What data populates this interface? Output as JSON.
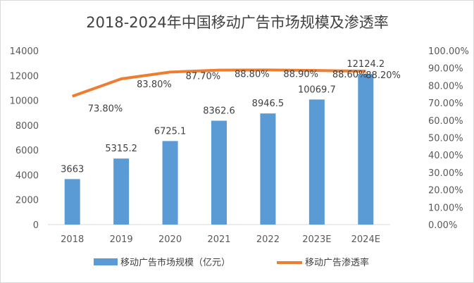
{
  "chart_data": {
    "type": "bar+line",
    "title": "2018-2024年中国移动广告市场规模及渗透率",
    "categories": [
      "2018",
      "2019",
      "2020",
      "2021",
      "2022",
      "2023E",
      "2024E"
    ],
    "series": [
      {
        "name": "移动广告市场规模（亿元）",
        "type": "bar",
        "axis": "left",
        "color": "#5b9bd5",
        "values": [
          3663,
          5315.2,
          6725.1,
          8362.6,
          8946.5,
          10069.7,
          12124.2
        ],
        "labels": [
          "3663",
          "5315.2",
          "6725.1",
          "8362.6",
          "8946.5",
          "10069.7",
          "12124.2"
        ]
      },
      {
        "name": "移动广告渗透率",
        "type": "line",
        "axis": "right",
        "color": "#ed7d31",
        "values": [
          73.8,
          83.8,
          87.7,
          88.8,
          88.9,
          88.6,
          88.2
        ],
        "labels": [
          "73.80%",
          "83.80%",
          "87.70%",
          "88.80%",
          "88.90%",
          "88.60%",
          "88.20%"
        ]
      }
    ],
    "left_axis": {
      "ylim": [
        0,
        14000
      ],
      "ticks": [
        "0",
        "2000",
        "4000",
        "6000",
        "8000",
        "10000",
        "12000",
        "14000"
      ]
    },
    "right_axis": {
      "ylim": [
        0,
        100
      ],
      "ticks": [
        "0.00%",
        "10.00%",
        "20.00%",
        "30.00%",
        "40.00%",
        "50.00%",
        "60.00%",
        "70.00%",
        "80.00%",
        "90.00%",
        "100.00%"
      ]
    },
    "grid": false,
    "legend": "bottom"
  }
}
